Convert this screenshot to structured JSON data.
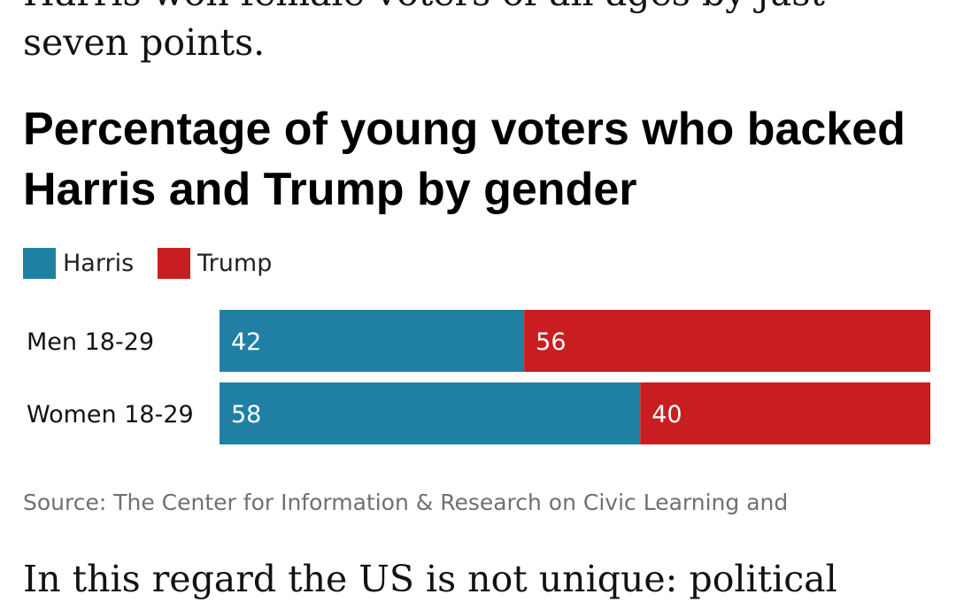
{
  "article": {
    "intro_clipped": "Harris won female voters of all ages by just",
    "intro_end": "seven points.",
    "next_paragraph_start": "In this regard the US is not unique: political"
  },
  "chart_data": {
    "type": "bar",
    "stacked": true,
    "orientation": "horizontal",
    "title": "Percentage of young voters who backed Harris and Trump by gender",
    "categories": [
      "Men 18-29",
      "Women 18-29"
    ],
    "series": [
      {
        "name": "Harris",
        "color": "#1f80a4",
        "values": [
          42,
          58
        ]
      },
      {
        "name": "Trump",
        "color": "#c91e21",
        "values": [
          56,
          40
        ]
      }
    ],
    "legend": "top-left",
    "grid": false,
    "source": "Source: The Center for Information & Research on Civic Learning and"
  }
}
